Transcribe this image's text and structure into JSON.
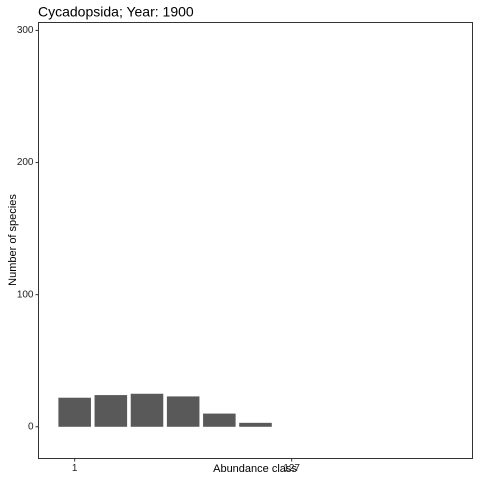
{
  "chart_data": {
    "type": "bar",
    "title": "Cycadopsida; Year: 1900",
    "x_label": "Abundance class",
    "y_label": "Number of species",
    "categories": [
      "1",
      null,
      null,
      null,
      null,
      null,
      "127",
      null,
      null,
      null,
      null
    ],
    "values": [
      22,
      24,
      25,
      23,
      10,
      3,
      null,
      null,
      null,
      null,
      null
    ],
    "color": "#595959",
    "ylim": [
      -24,
      306
    ],
    "yticks": [
      0,
      100,
      200,
      300
    ],
    "grid": false
  }
}
